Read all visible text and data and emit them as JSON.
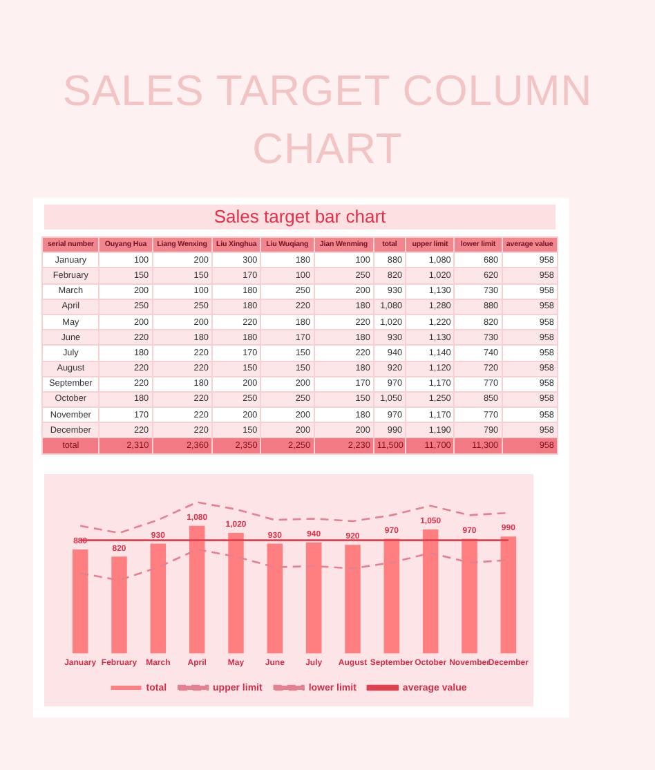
{
  "chart_data": [
    {
      "type": "heatmap",
      "title": "SALES TARGET COLUMN CHART",
      "subtitle": "Sales target bar chart",
      "ylabel": "serial number",
      "categories": [
        "Ouyang Hua",
        "Liang Wenxing",
        "Liu Xinghua",
        "Liu Wuqiang",
        "Jian Wenming",
        "total",
        "upper limit",
        "lower limit",
        "average value"
      ],
      "y_categories": [
        "January",
        "February",
        "March",
        "April",
        "May",
        "June",
        "July",
        "August",
        "September",
        "October",
        "November",
        "December",
        "total"
      ],
      "cells": [
        [
          100,
          200,
          300,
          180,
          100,
          880,
          1080,
          680,
          958
        ],
        [
          150,
          150,
          170,
          100,
          250,
          820,
          1020,
          620,
          958
        ],
        [
          200,
          100,
          180,
          250,
          200,
          930,
          1130,
          730,
          958
        ],
        [
          250,
          250,
          180,
          220,
          180,
          1080,
          1280,
          880,
          958
        ],
        [
          200,
          200,
          220,
          180,
          220,
          1020,
          1220,
          820,
          958
        ],
        [
          220,
          180,
          180,
          170,
          180,
          930,
          1130,
          730,
          958
        ],
        [
          180,
          220,
          170,
          150,
          220,
          940,
          1140,
          740,
          958
        ],
        [
          220,
          220,
          150,
          150,
          180,
          920,
          1120,
          720,
          958
        ],
        [
          220,
          180,
          200,
          200,
          170,
          970,
          1170,
          770,
          958
        ],
        [
          180,
          220,
          250,
          250,
          150,
          1050,
          1250,
          850,
          958
        ],
        [
          170,
          220,
          200,
          200,
          180,
          970,
          1170,
          770,
          958
        ],
        [
          220,
          220,
          150,
          200,
          200,
          990,
          1190,
          790,
          958
        ],
        [
          2310,
          2360,
          2350,
          2250,
          2230,
          11500,
          11700,
          11300,
          958
        ]
      ],
      "cell_labels": [
        [
          "100",
          "200",
          "300",
          "180",
          "100",
          "880",
          "1,080",
          "680",
          "958"
        ],
        [
          "150",
          "150",
          "170",
          "100",
          "250",
          "820",
          "1,020",
          "620",
          "958"
        ],
        [
          "200",
          "100",
          "180",
          "250",
          "200",
          "930",
          "1,130",
          "730",
          "958"
        ],
        [
          "250",
          "250",
          "180",
          "220",
          "180",
          "1,080",
          "1,280",
          "880",
          "958"
        ],
        [
          "200",
          "200",
          "220",
          "180",
          "220",
          "1,020",
          "1,220",
          "820",
          "958"
        ],
        [
          "220",
          "180",
          "180",
          "170",
          "180",
          "930",
          "1,130",
          "730",
          "958"
        ],
        [
          "180",
          "220",
          "170",
          "150",
          "220",
          "940",
          "1,140",
          "740",
          "958"
        ],
        [
          "220",
          "220",
          "150",
          "150",
          "180",
          "920",
          "1,120",
          "720",
          "958"
        ],
        [
          "220",
          "180",
          "200",
          "200",
          "170",
          "970",
          "1,170",
          "770",
          "958"
        ],
        [
          "180",
          "220",
          "250",
          "250",
          "150",
          "1,050",
          "1,250",
          "850",
          "958"
        ],
        [
          "170",
          "220",
          "200",
          "200",
          "180",
          "970",
          "1,170",
          "770",
          "958"
        ],
        [
          "220",
          "220",
          "150",
          "200",
          "200",
          "990",
          "1,190",
          "790",
          "958"
        ],
        [
          "2,310",
          "2,360",
          "2,350",
          "2,250",
          "2,230",
          "11,500",
          "11,700",
          "11,300",
          "958"
        ]
      ]
    },
    {
      "type": "bar",
      "categories": [
        "January",
        "February",
        "March",
        "April",
        "May",
        "June",
        "July",
        "August",
        "September",
        "October",
        "November",
        "December"
      ],
      "legend": "bottom",
      "grid": false,
      "marker": "none",
      "series": [
        {
          "name": "total",
          "type": "bar",
          "color": "#ff7f80",
          "values": [
            880,
            820,
            930,
            1080,
            1020,
            930,
            940,
            920,
            970,
            1050,
            970,
            990
          ],
          "value_labels": [
            "880",
            "820",
            "930",
            "1,080",
            "1,020",
            "930",
            "940",
            "920",
            "970",
            "1,050",
            "970",
            "990"
          ]
        },
        {
          "name": "upper limit",
          "type": "line",
          "line_style": "dashed",
          "color": "#e58090",
          "values": [
            1080,
            1020,
            1130,
            1280,
            1220,
            1130,
            1140,
            1120,
            1170,
            1250,
            1170,
            1190
          ]
        },
        {
          "name": "lower limit",
          "type": "line",
          "line_style": "dashed",
          "color": "#e58090",
          "values": [
            680,
            620,
            730,
            880,
            820,
            730,
            740,
            720,
            770,
            850,
            770,
            790
          ]
        },
        {
          "name": "average value",
          "type": "line",
          "line_style": "solid",
          "color": "#e0404e",
          "values": [
            958,
            958,
            958,
            958,
            958,
            958,
            958,
            958,
            958,
            958,
            958,
            958
          ]
        }
      ]
    }
  ]
}
